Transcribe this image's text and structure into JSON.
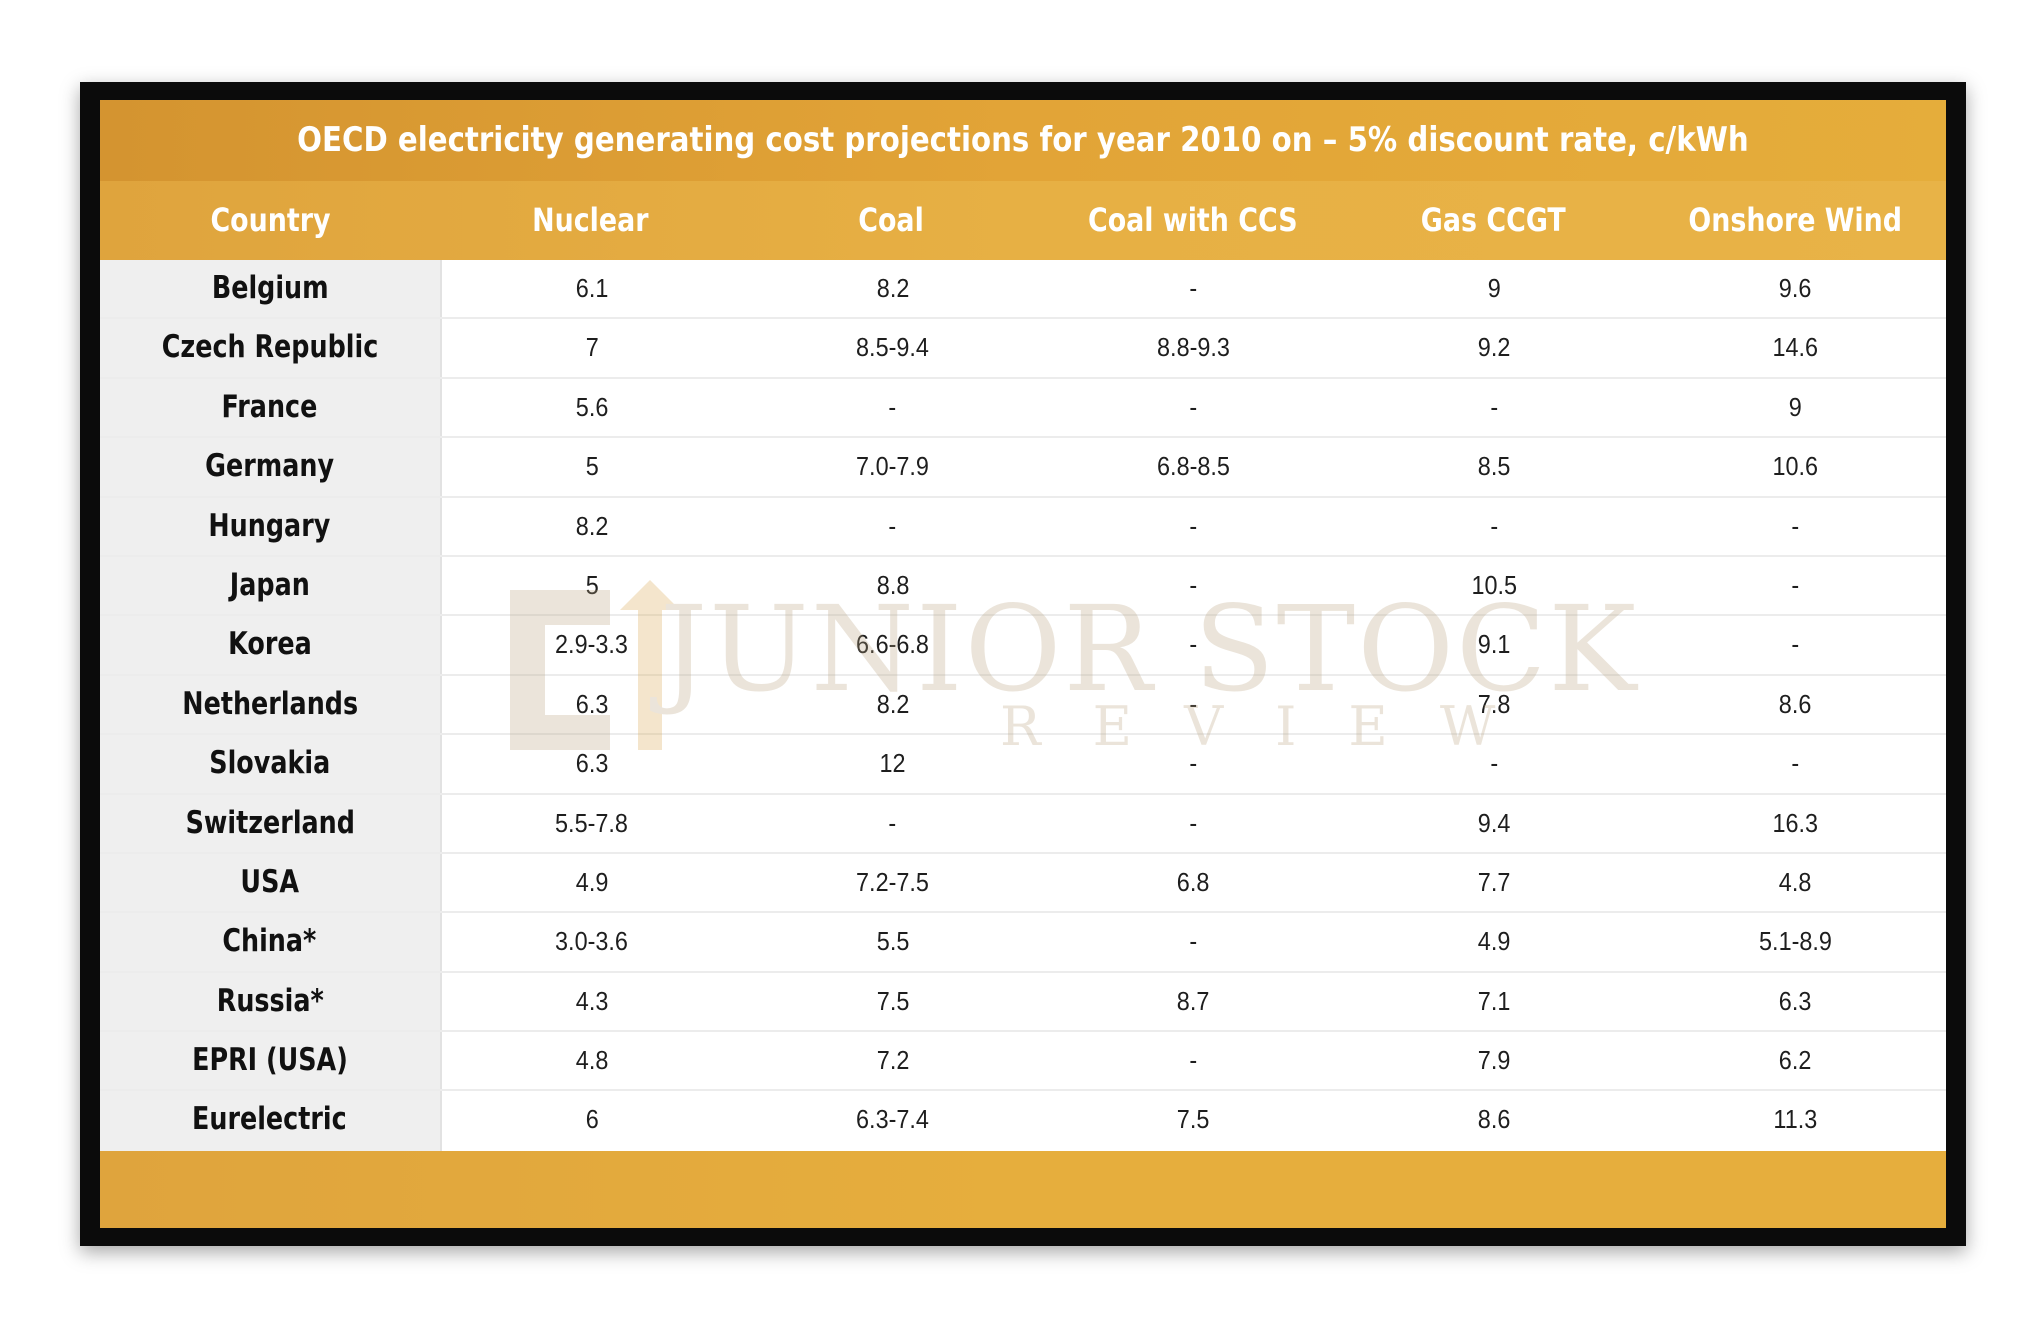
{
  "chart_data": {
    "type": "table",
    "title": "OECD electricity generating cost projections for year 2010 on – 5% discount rate, c/kWh",
    "columns": [
      "Country",
      "Nuclear",
      "Coal",
      "Coal with CCS",
      "Gas CCGT",
      "Onshore Wind"
    ],
    "rows": [
      [
        "Belgium",
        "6.1",
        "8.2",
        "-",
        "9",
        "9.6"
      ],
      [
        "Czech Republic",
        "7",
        "8.5-9.4",
        "8.8-9.3",
        "9.2",
        "14.6"
      ],
      [
        "France",
        "5.6",
        "-",
        "-",
        "-",
        "9"
      ],
      [
        "Germany",
        "5",
        "7.0-7.9",
        "6.8-8.5",
        "8.5",
        "10.6"
      ],
      [
        "Hungary",
        "8.2",
        "-",
        "-",
        "-",
        "-"
      ],
      [
        "Japan",
        "5",
        "8.8",
        "-",
        "10.5",
        "-"
      ],
      [
        "Korea",
        "2.9-3.3",
        "6.6-6.8",
        "-",
        "9.1",
        "-"
      ],
      [
        "Netherlands",
        "6.3",
        "8.2",
        "-",
        "7.8",
        "8.6"
      ],
      [
        "Slovakia",
        "6.3",
        "12",
        "-",
        "-",
        "-"
      ],
      [
        "Switzerland",
        "5.5-7.8",
        "-",
        "-",
        "9.4",
        "16.3"
      ],
      [
        "USA",
        "4.9",
        "7.2-7.5",
        "6.8",
        "7.7",
        "4.8"
      ],
      [
        "China*",
        "3.0-3.6",
        "5.5",
        "-",
        "4.9",
        "5.1-8.9"
      ],
      [
        "Russia*",
        "4.3",
        "7.5",
        "8.7",
        "7.1",
        "6.3"
      ],
      [
        "EPRI (USA)",
        "4.8",
        "7.2",
        "-",
        "7.9",
        "6.2"
      ],
      [
        "Eurelectric",
        "6",
        "6.3-7.4",
        "7.5",
        "8.6",
        "11.3"
      ]
    ]
  },
  "watermark": {
    "main": "JUNIOR STOCK",
    "sub": "REVIEW"
  },
  "colors": {
    "header": "#e2a437",
    "country_bg": "#efefef",
    "frame": "#0b0b0b"
  }
}
